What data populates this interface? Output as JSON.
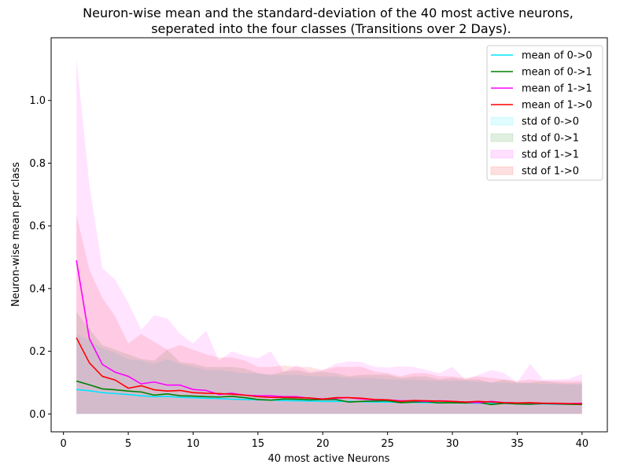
{
  "chart_data": {
    "type": "line",
    "title_line1": "Neuron-wise mean and the standard-deviation of the 40 most active neurons,",
    "title_line2": "seperated into the four classes (Transitions over 2 Days).",
    "xlabel": "40 most active Neurons",
    "ylabel": "Neuron-wise mean per class",
    "xlim": [
      -0.95,
      41.95
    ],
    "ylim": [
      -0.057,
      1.2
    ],
    "xticks": [
      0,
      5,
      10,
      15,
      20,
      25,
      30,
      35,
      40
    ],
    "yticks": [
      0.0,
      0.2,
      0.4,
      0.6,
      0.8,
      1.0
    ],
    "ytick_labels": [
      "0.0",
      "0.2",
      "0.4",
      "0.6",
      "0.8",
      "1.0"
    ],
    "grid": false,
    "legend_position": "upper right",
    "x": [
      1,
      2,
      3,
      4,
      5,
      6,
      7,
      8,
      9,
      10,
      11,
      12,
      13,
      14,
      15,
      16,
      17,
      18,
      19,
      20,
      21,
      22,
      23,
      24,
      25,
      26,
      27,
      28,
      29,
      30,
      31,
      32,
      33,
      34,
      35,
      36,
      37,
      38,
      39,
      40
    ],
    "series": [
      {
        "name": "mean of 0->0",
        "color": "#00e5ff",
        "values": [
          0.078,
          0.074,
          0.068,
          0.065,
          0.062,
          0.058,
          0.055,
          0.056,
          0.053,
          0.052,
          0.05,
          0.049,
          0.047,
          0.046,
          0.045,
          0.044,
          0.043,
          0.042,
          0.041,
          0.04,
          0.04,
          0.04,
          0.039,
          0.038,
          0.038,
          0.037,
          0.037,
          0.036,
          0.036,
          0.035,
          0.035,
          0.034,
          0.034,
          0.033,
          0.033,
          0.032,
          0.032,
          0.031,
          0.031,
          0.03
        ]
      },
      {
        "name": "mean of 0->1",
        "color": "#008000",
        "values": [
          0.105,
          0.093,
          0.08,
          0.077,
          0.073,
          0.07,
          0.06,
          0.064,
          0.058,
          0.057,
          0.055,
          0.054,
          0.056,
          0.052,
          0.046,
          0.044,
          0.048,
          0.047,
          0.045,
          0.046,
          0.046,
          0.038,
          0.04,
          0.041,
          0.042,
          0.036,
          0.038,
          0.039,
          0.035,
          0.036,
          0.035,
          0.037,
          0.03,
          0.034,
          0.032,
          0.031,
          0.033,
          0.032,
          0.031,
          0.03
        ]
      },
      {
        "name": "mean of 1->1",
        "color": "#ff00ff",
        "values": [
          0.49,
          0.24,
          0.158,
          0.133,
          0.12,
          0.096,
          0.102,
          0.092,
          0.092,
          0.078,
          0.075,
          0.062,
          0.066,
          0.06,
          0.058,
          0.058,
          0.055,
          0.055,
          0.05,
          0.048,
          0.05,
          0.052,
          0.048,
          0.045,
          0.045,
          0.042,
          0.042,
          0.04,
          0.042,
          0.04,
          0.038,
          0.036,
          0.04,
          0.036,
          0.035,
          0.035,
          0.034,
          0.033,
          0.033,
          0.034
        ]
      },
      {
        "name": "mean of 1->0",
        "color": "#ff0000",
        "values": [
          0.243,
          0.163,
          0.12,
          0.108,
          0.082,
          0.09,
          0.077,
          0.073,
          0.075,
          0.068,
          0.066,
          0.065,
          0.063,
          0.06,
          0.055,
          0.053,
          0.053,
          0.052,
          0.051,
          0.047,
          0.052,
          0.052,
          0.05,
          0.046,
          0.045,
          0.04,
          0.043,
          0.042,
          0.041,
          0.04,
          0.038,
          0.04,
          0.038,
          0.036,
          0.035,
          0.036,
          0.034,
          0.034,
          0.033,
          0.032
        ]
      }
    ],
    "bands": [
      {
        "name": "std of 0->0",
        "color": "#00e5ff",
        "lower": [
          0,
          0,
          0,
          0,
          0,
          0,
          0,
          0,
          0,
          0,
          0,
          0,
          0,
          0,
          0,
          0,
          0,
          0,
          0,
          0,
          0,
          0,
          0,
          0,
          0,
          0,
          0,
          0,
          0,
          0,
          0,
          0,
          0,
          0,
          0,
          0,
          0,
          0,
          0,
          0
        ],
        "upper": [
          0.255,
          0.235,
          0.21,
          0.195,
          0.175,
          0.17,
          0.16,
          0.175,
          0.16,
          0.15,
          0.14,
          0.14,
          0.135,
          0.13,
          0.13,
          0.125,
          0.125,
          0.125,
          0.12,
          0.12,
          0.12,
          0.115,
          0.115,
          0.115,
          0.11,
          0.11,
          0.11,
          0.108,
          0.105,
          0.105,
          0.105,
          0.103,
          0.1,
          0.1,
          0.098,
          0.098,
          0.096,
          0.095,
          0.094,
          0.094
        ]
      },
      {
        "name": "std of 0->1",
        "color": "#008000",
        "lower": [
          0,
          0,
          0,
          0,
          0,
          0,
          0,
          0,
          0,
          0,
          0,
          0,
          0,
          0,
          0,
          0,
          0,
          0,
          0,
          0,
          0,
          0,
          0,
          0,
          0,
          0,
          0,
          0,
          0,
          0,
          0,
          0,
          0,
          0,
          0,
          0,
          0,
          0,
          0,
          0
        ],
        "upper": [
          0.325,
          0.27,
          0.22,
          0.205,
          0.19,
          0.175,
          0.17,
          0.205,
          0.165,
          0.16,
          0.15,
          0.15,
          0.15,
          0.145,
          0.13,
          0.125,
          0.135,
          0.14,
          0.13,
          0.135,
          0.13,
          0.12,
          0.125,
          0.125,
          0.125,
          0.115,
          0.12,
          0.12,
          0.11,
          0.115,
          0.11,
          0.11,
          0.1,
          0.11,
          0.1,
          0.1,
          0.105,
          0.1,
          0.098,
          0.098
        ]
      },
      {
        "name": "std of 1->1",
        "color": "#ff00ff",
        "lower": [
          0,
          0,
          0,
          0,
          0,
          0,
          0,
          0,
          0,
          0,
          0,
          0,
          0,
          0,
          0,
          0,
          0,
          0,
          0,
          0,
          0,
          0,
          0,
          0,
          0,
          0,
          0,
          0,
          0,
          0,
          0,
          0,
          0,
          0,
          0,
          0,
          0,
          0,
          0,
          0
        ],
        "upper": [
          1.135,
          0.73,
          0.465,
          0.428,
          0.355,
          0.268,
          0.315,
          0.305,
          0.255,
          0.225,
          0.265,
          0.17,
          0.2,
          0.185,
          0.178,
          0.2,
          0.135,
          0.155,
          0.135,
          0.14,
          0.16,
          0.168,
          0.165,
          0.15,
          0.148,
          0.152,
          0.15,
          0.14,
          0.13,
          0.15,
          0.11,
          0.125,
          0.14,
          0.13,
          0.1,
          0.16,
          0.11,
          0.11,
          0.112,
          0.128
        ]
      },
      {
        "name": "std of 1->0",
        "color": "#ff0000",
        "lower": [
          0,
          0,
          0,
          0,
          0,
          0,
          0,
          0,
          0,
          0,
          0,
          0,
          0,
          0,
          0,
          0,
          0,
          0,
          0,
          0,
          0,
          0,
          0,
          0,
          0,
          0,
          0,
          0,
          0,
          0,
          0,
          0,
          0,
          0,
          0,
          0,
          0,
          0,
          0,
          0
        ],
        "upper": [
          0.635,
          0.46,
          0.37,
          0.31,
          0.225,
          0.255,
          0.23,
          0.205,
          0.22,
          0.205,
          0.19,
          0.18,
          0.18,
          0.17,
          0.15,
          0.15,
          0.155,
          0.15,
          0.15,
          0.14,
          0.15,
          0.15,
          0.15,
          0.135,
          0.13,
          0.12,
          0.13,
          0.13,
          0.12,
          0.12,
          0.115,
          0.12,
          0.115,
          0.11,
          0.105,
          0.11,
          0.105,
          0.105,
          0.105,
          0.105
        ]
      }
    ]
  }
}
